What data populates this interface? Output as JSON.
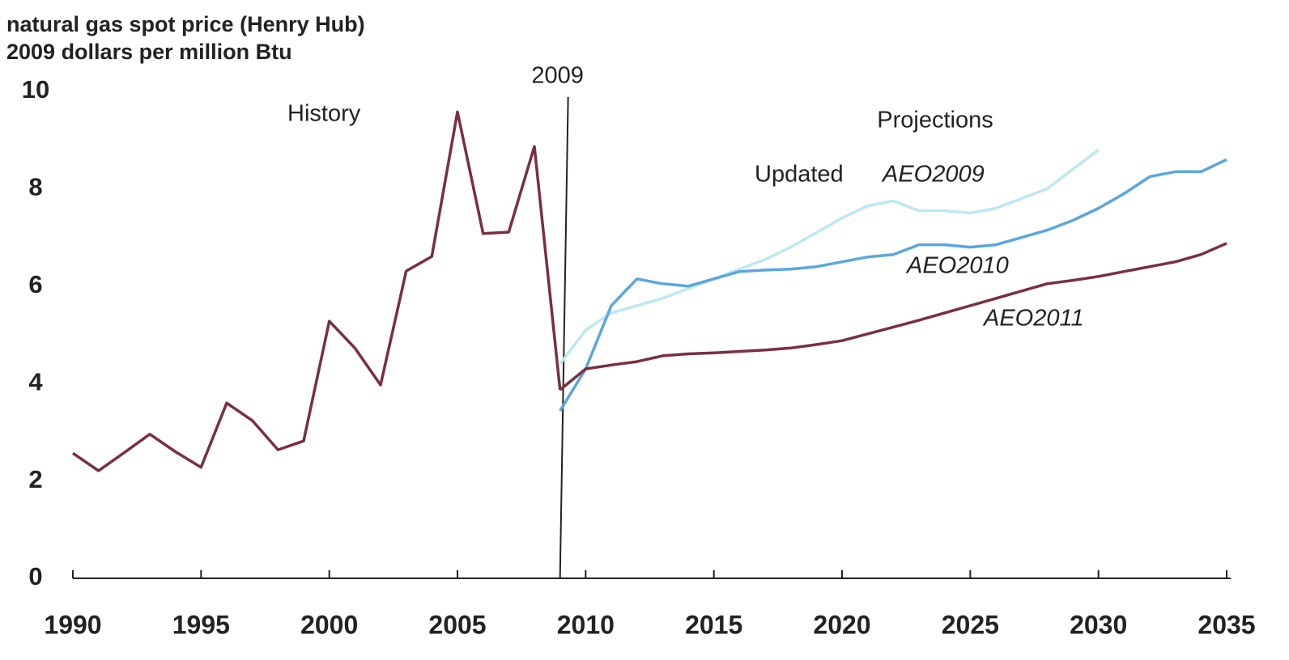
{
  "chart_data": {
    "type": "line",
    "title": [
      "natural gas spot price (Henry Hub)",
      "2009 dollars per million Btu"
    ],
    "x": [
      1990,
      1991,
      1992,
      1993,
      1994,
      1995,
      1996,
      1997,
      1998,
      1999,
      2000,
      2001,
      2002,
      2003,
      2004,
      2005,
      2006,
      2007,
      2008,
      2009,
      2010,
      2011,
      2012,
      2013,
      2014,
      2015,
      2016,
      2017,
      2018,
      2019,
      2020,
      2021,
      2022,
      2023,
      2024,
      2025,
      2026,
      2027,
      2028,
      2029,
      2030,
      2031,
      2032,
      2033,
      2034,
      2035
    ],
    "series": [
      {
        "name": "History",
        "color": "#7a2f3f",
        "values": [
          2.57,
          2.21,
          2.58,
          2.96,
          2.6,
          2.28,
          3.6,
          3.24,
          2.64,
          2.82,
          5.28,
          4.73,
          3.97,
          6.31,
          6.61,
          9.58,
          7.08,
          7.11,
          8.87,
          3.87,
          null,
          null,
          null,
          null,
          null,
          null,
          null,
          null,
          null,
          null,
          null,
          null,
          null,
          null,
          null,
          null,
          null,
          null,
          null,
          null,
          null,
          null,
          null,
          null,
          null,
          null
        ]
      },
      {
        "name": "AEO2011",
        "color": "#7a2f3f",
        "values": [
          null,
          null,
          null,
          null,
          null,
          null,
          null,
          null,
          null,
          null,
          null,
          null,
          null,
          null,
          null,
          null,
          null,
          null,
          null,
          3.87,
          4.3,
          4.38,
          4.45,
          4.57,
          4.61,
          4.63,
          4.66,
          4.69,
          4.73,
          4.8,
          4.88,
          5.02,
          5.16,
          5.3,
          5.45,
          5.6,
          5.75,
          5.9,
          6.05,
          6.12,
          6.2,
          6.3,
          6.4,
          6.5,
          6.65,
          6.88
        ]
      },
      {
        "name": "AEO2010",
        "color": "#5aa6e0",
        "values": [
          null,
          null,
          null,
          null,
          null,
          null,
          null,
          null,
          null,
          null,
          null,
          null,
          null,
          null,
          null,
          null,
          null,
          null,
          null,
          3.44,
          4.3,
          5.6,
          6.15,
          6.05,
          6.0,
          6.15,
          6.3,
          6.33,
          6.35,
          6.4,
          6.5,
          6.6,
          6.65,
          6.85,
          6.85,
          6.8,
          6.85,
          7.0,
          7.15,
          7.35,
          7.6,
          7.9,
          8.25,
          8.35,
          8.35,
          8.6
        ]
      },
      {
        "name": "AEO2009",
        "color": "#bde8f4",
        "values": [
          null,
          null,
          null,
          null,
          null,
          null,
          null,
          null,
          null,
          null,
          null,
          null,
          null,
          null,
          null,
          null,
          null,
          null,
          null,
          4.4,
          5.1,
          5.45,
          5.6,
          5.75,
          5.95,
          6.15,
          6.35,
          6.55,
          6.8,
          7.1,
          7.4,
          7.65,
          7.75,
          7.55,
          7.55,
          7.5,
          7.6,
          7.8,
          8.0,
          8.4,
          8.8,
          null,
          null,
          null,
          null,
          null
        ]
      }
    ],
    "annotations": [
      "Projections",
      "Updated"
    ],
    "vline": 2009,
    "xlim": [
      1990,
      2035
    ],
    "xticks": [
      1990,
      1995,
      2000,
      2005,
      2010,
      2015,
      2020,
      2025,
      2030,
      2035
    ],
    "ylim": [
      0,
      10
    ],
    "yticks": [
      0,
      2,
      4,
      6,
      8,
      10
    ]
  }
}
